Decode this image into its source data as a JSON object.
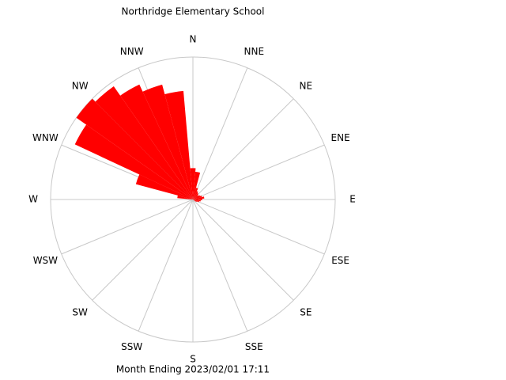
{
  "chart_data": {
    "type": "windrose",
    "title": "Northridge Elementary School",
    "subtitle": "Month Ending 2023/02/01 17:11",
    "direction_labels": [
      "N",
      "NNE",
      "NE",
      "ENE",
      "E",
      "ESE",
      "SE",
      "SSE",
      "S",
      "SSW",
      "SW",
      "WSW",
      "W",
      "WNW",
      "NW",
      "NNW"
    ],
    "x": [
      0,
      10,
      20,
      30,
      40,
      50,
      60,
      70,
      80,
      90,
      100,
      110,
      120,
      130,
      140,
      150,
      160,
      170,
      180,
      190,
      200,
      210,
      220,
      230,
      240,
      250,
      260,
      270,
      280,
      290,
      300,
      310,
      320,
      330,
      340,
      350
    ],
    "values": [
      4.4,
      3.9,
      1.7,
      1.3,
      1.1,
      0.9,
      1.1,
      1.3,
      1.6,
      1.3,
      1.1,
      0.9,
      0.6,
      0,
      0,
      0,
      0,
      0,
      0,
      0,
      0,
      0,
      0,
      0,
      0,
      0,
      0,
      0,
      2.2,
      8.3,
      18.3,
      20,
      19.4,
      17.8,
      16.7,
      15.3
    ],
    "color": "#ff0000",
    "rlim": [
      0,
      20
    ]
  }
}
